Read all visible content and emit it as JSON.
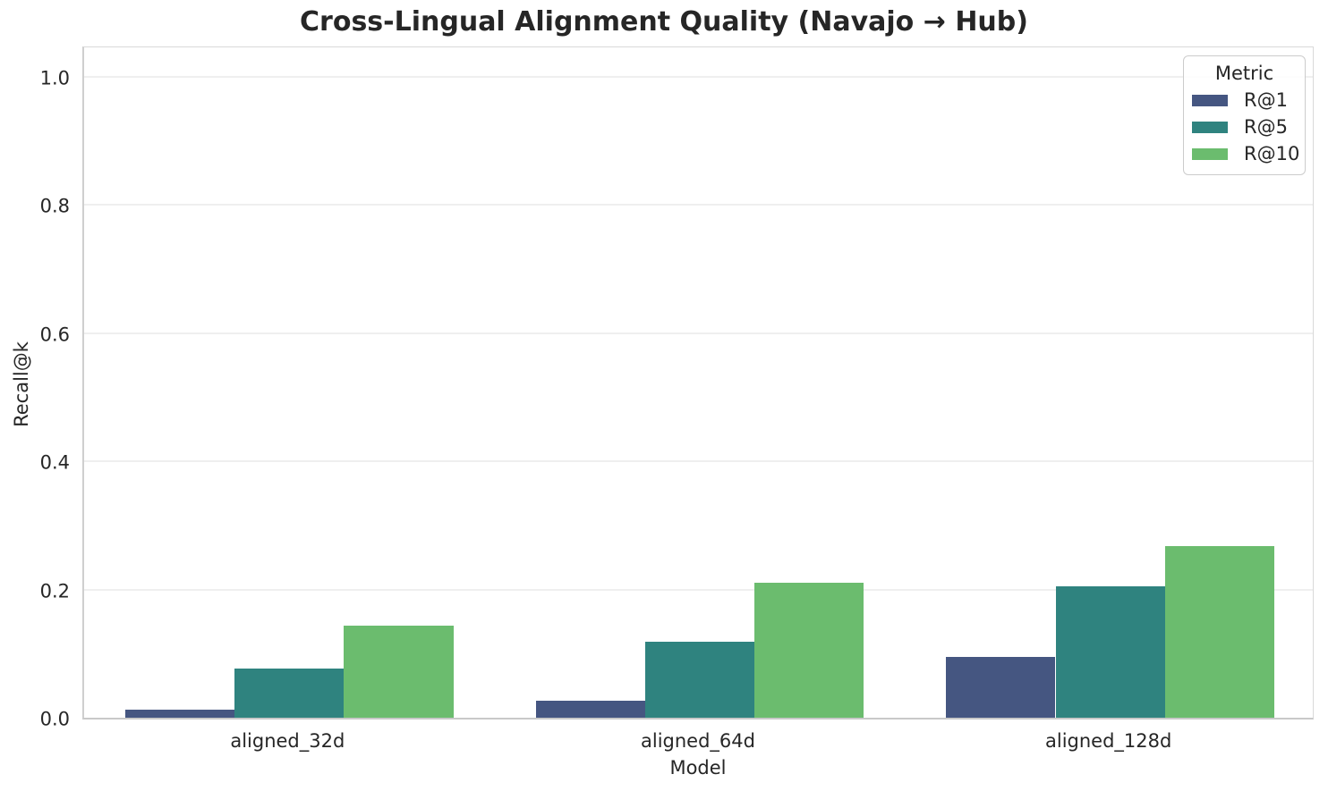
{
  "chart_data": {
    "type": "bar",
    "title": "Cross-Lingual Alignment Quality (Navajo → Hub)",
    "xlabel": "Model",
    "ylabel": "Recall@k",
    "categories": [
      "aligned_32d",
      "aligned_64d",
      "aligned_128d"
    ],
    "series": [
      {
        "name": "R@1",
        "color": "#455681",
        "values": [
          0.012,
          0.027,
          0.095
        ]
      },
      {
        "name": "R@5",
        "color": "#2f837f",
        "values": [
          0.077,
          0.119,
          0.205
        ]
      },
      {
        "name": "R@10",
        "color": "#6bbc6e",
        "values": [
          0.143,
          0.21,
          0.268
        ]
      }
    ],
    "ylim": [
      0,
      1.05
    ],
    "yticks": [
      0.0,
      0.2,
      0.4,
      0.6,
      0.8,
      1.0
    ],
    "ytick_labels": [
      "0.0",
      "0.2",
      "0.4",
      "0.6",
      "0.8",
      "1.0"
    ],
    "grid": true,
    "grid_axis": "y",
    "legend": {
      "title": "Metric",
      "position": "upper right",
      "entries": [
        "R@1",
        "R@5",
        "R@10"
      ]
    }
  }
}
